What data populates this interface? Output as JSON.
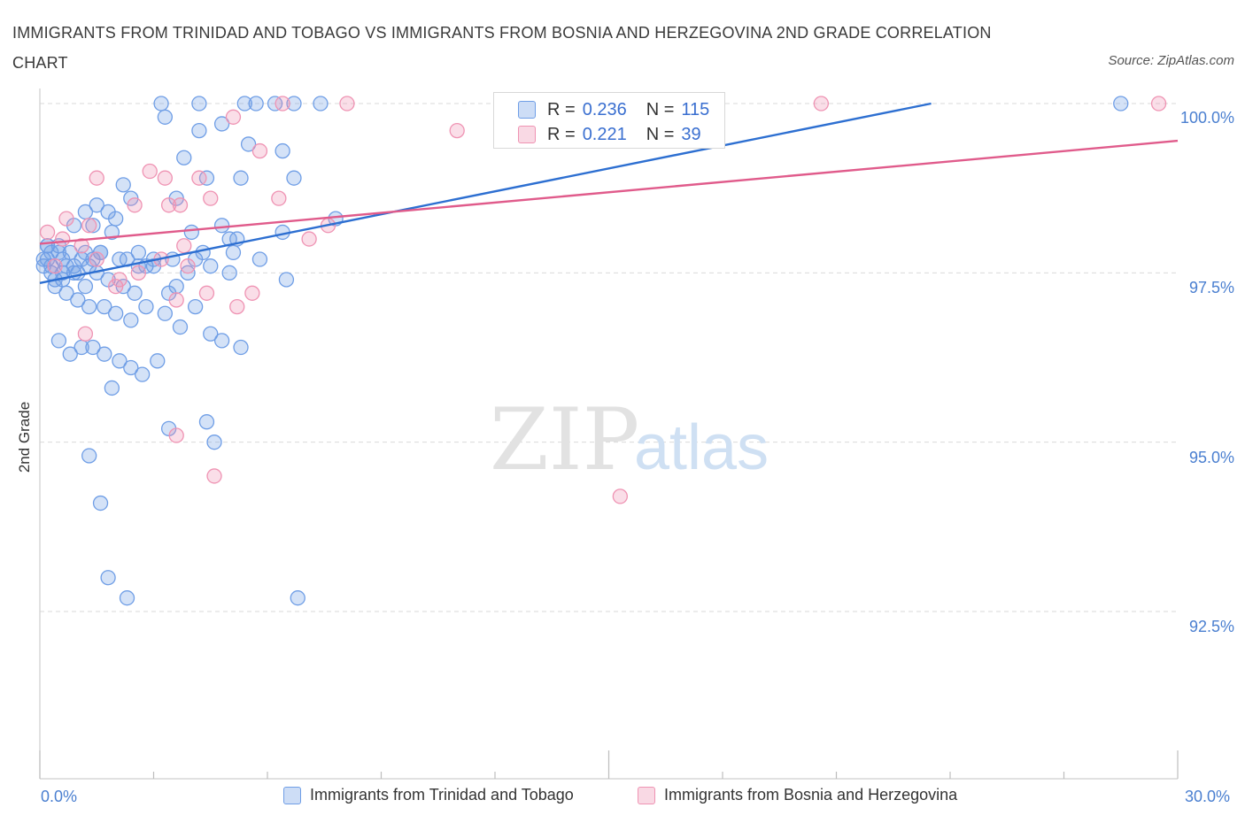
{
  "title": "IMMIGRANTS FROM TRINIDAD AND TOBAGO VS IMMIGRANTS FROM BOSNIA AND HERZEGOVINA 2ND GRADE CORRELATION CHART",
  "source": "Source: ZipAtlas.com",
  "watermark": {
    "zip": "ZIP",
    "atlas": "atlas"
  },
  "legend_top": [
    {
      "r_label": "R =",
      "r_value": "0.236",
      "n_label": "N =",
      "n_value": "115",
      "color": "#6f9ee6"
    },
    {
      "r_label": "R =",
      "r_value": "0.221",
      "n_label": "N =",
      "n_value": "39",
      "color": "#ef93b3"
    }
  ],
  "chart_data": {
    "type": "scatter",
    "title": "IMMIGRANTS FROM TRINIDAD AND TOBAGO VS IMMIGRANTS FROM BOSNIA AND HERZEGOVINA 2ND GRADE CORRELATION CHART",
    "xlabel": "",
    "ylabel": "2nd Grade",
    "xlim": [
      0,
      30
    ],
    "ylim": [
      90.25,
      100.2
    ],
    "x_tick_labels": [
      "0.0%",
      "30.0%"
    ],
    "y_ticks": [
      92.5,
      95.0,
      97.5,
      100.0
    ],
    "y_tick_labels": [
      "92.5%",
      "95.0%",
      "97.5%",
      "100.0%"
    ],
    "grid": true,
    "legend_position": "top-center",
    "series": [
      {
        "name": "Immigrants from Trinidad and Tobago",
        "color": "#6f9ee6",
        "line_color": "#2d6fd1",
        "trend": {
          "x": [
            0,
            23.5
          ],
          "y": [
            97.35,
            100.0
          ]
        },
        "points": [
          [
            3.2,
            100
          ],
          [
            4.2,
            100
          ],
          [
            5.7,
            100
          ],
          [
            5.4,
            100
          ],
          [
            6.2,
            100
          ],
          [
            6.7,
            100
          ],
          [
            7.4,
            100
          ],
          [
            28.5,
            100
          ],
          [
            3.3,
            99.8
          ],
          [
            4.8,
            99.7
          ],
          [
            3.8,
            99.2
          ],
          [
            4.2,
            99.6
          ],
          [
            5.5,
            99.4
          ],
          [
            6.4,
            99.3
          ],
          [
            5.3,
            98.9
          ],
          [
            6.7,
            98.9
          ],
          [
            3.6,
            98.6
          ],
          [
            4.4,
            98.9
          ],
          [
            2.2,
            98.8
          ],
          [
            7.8,
            98.3
          ],
          [
            1.2,
            98.4
          ],
          [
            1.5,
            98.5
          ],
          [
            1.8,
            98.4
          ],
          [
            2.0,
            98.3
          ],
          [
            2.4,
            98.6
          ],
          [
            0.9,
            98.2
          ],
          [
            1.4,
            98.2
          ],
          [
            1.9,
            98.1
          ],
          [
            4.0,
            98.1
          ],
          [
            4.8,
            98.2
          ],
          [
            5.2,
            98.0
          ],
          [
            5.0,
            98.0
          ],
          [
            0.2,
            97.9
          ],
          [
            0.5,
            97.9
          ],
          [
            0.8,
            97.8
          ],
          [
            1.1,
            97.7
          ],
          [
            1.3,
            97.6
          ],
          [
            1.6,
            97.8
          ],
          [
            2.1,
            97.7
          ],
          [
            2.6,
            97.6
          ],
          [
            3.0,
            97.6
          ],
          [
            3.5,
            97.7
          ],
          [
            4.3,
            97.8
          ],
          [
            4.1,
            97.7
          ],
          [
            4.5,
            97.6
          ],
          [
            5.1,
            97.8
          ],
          [
            5.8,
            97.7
          ],
          [
            6.5,
            97.4
          ],
          [
            0.1,
            97.6
          ],
          [
            0.3,
            97.5
          ],
          [
            0.6,
            97.4
          ],
          [
            0.9,
            97.6
          ],
          [
            1.2,
            97.3
          ],
          [
            1.5,
            97.5
          ],
          [
            1.8,
            97.4
          ],
          [
            2.2,
            97.3
          ],
          [
            2.5,
            97.2
          ],
          [
            2.8,
            97.0
          ],
          [
            3.4,
            97.2
          ],
          [
            4.1,
            97.0
          ],
          [
            0.4,
            97.3
          ],
          [
            0.7,
            97.2
          ],
          [
            1.0,
            97.1
          ],
          [
            1.3,
            97.0
          ],
          [
            1.7,
            97.0
          ],
          [
            2.0,
            96.9
          ],
          [
            2.4,
            96.8
          ],
          [
            3.3,
            96.9
          ],
          [
            3.7,
            96.7
          ],
          [
            4.5,
            96.6
          ],
          [
            4.8,
            96.5
          ],
          [
            5.3,
            96.4
          ],
          [
            0.5,
            96.5
          ],
          [
            0.8,
            96.3
          ],
          [
            1.1,
            96.4
          ],
          [
            1.4,
            96.4
          ],
          [
            1.7,
            96.3
          ],
          [
            2.1,
            96.2
          ],
          [
            2.4,
            96.1
          ],
          [
            2.7,
            96.0
          ],
          [
            3.1,
            96.2
          ],
          [
            1.9,
            95.8
          ],
          [
            3.4,
            95.2
          ],
          [
            4.4,
            95.3
          ],
          [
            4.6,
            95.0
          ],
          [
            1.3,
            94.8
          ],
          [
            1.6,
            94.1
          ],
          [
            1.8,
            93.0
          ],
          [
            2.3,
            92.7
          ],
          [
            6.8,
            92.7
          ],
          [
            0.3,
            97.8
          ],
          [
            0.6,
            97.7
          ],
          [
            0.9,
            97.5
          ],
          [
            1.6,
            97.8
          ],
          [
            2.8,
            97.6
          ],
          [
            3.6,
            97.3
          ],
          [
            0.2,
            97.7
          ],
          [
            0.4,
            97.4
          ],
          [
            0.7,
            97.6
          ],
          [
            1.2,
            97.8
          ],
          [
            2.3,
            97.7
          ],
          [
            3.0,
            97.7
          ],
          [
            5.0,
            97.5
          ],
          [
            0.3,
            97.6
          ],
          [
            0.5,
            97.8
          ],
          [
            1.0,
            97.5
          ],
          [
            1.4,
            97.7
          ],
          [
            2.6,
            97.8
          ],
          [
            3.9,
            97.5
          ],
          [
            6.4,
            98.1
          ],
          [
            0.1,
            97.7
          ],
          [
            0.2,
            97.9
          ],
          [
            0.6,
            97.5
          ]
        ]
      },
      {
        "name": "Immigrants from Bosnia and Herzegovina",
        "color": "#ef93b3",
        "line_color": "#e05b8b",
        "trend": {
          "x": [
            0,
            30
          ],
          "y": [
            97.93,
            99.45
          ]
        },
        "points": [
          [
            6.4,
            100
          ],
          [
            8.1,
            100
          ],
          [
            20.6,
            100
          ],
          [
            29.5,
            100
          ],
          [
            11.0,
            99.6
          ],
          [
            5.1,
            99.8
          ],
          [
            5.8,
            99.3
          ],
          [
            1.5,
            98.9
          ],
          [
            2.9,
            99.0
          ],
          [
            3.3,
            98.9
          ],
          [
            4.2,
            98.9
          ],
          [
            4.5,
            98.6
          ],
          [
            3.4,
            98.5
          ],
          [
            3.7,
            98.5
          ],
          [
            2.5,
            98.5
          ],
          [
            6.3,
            98.6
          ],
          [
            7.1,
            98.0
          ],
          [
            0.7,
            98.3
          ],
          [
            1.3,
            98.2
          ],
          [
            0.2,
            98.1
          ],
          [
            0.6,
            98.0
          ],
          [
            1.1,
            97.9
          ],
          [
            3.8,
            97.9
          ],
          [
            2.6,
            97.5
          ],
          [
            3.2,
            97.7
          ],
          [
            3.9,
            97.6
          ],
          [
            5.6,
            97.2
          ],
          [
            5.2,
            97.0
          ],
          [
            2.1,
            97.4
          ],
          [
            0.4,
            97.6
          ],
          [
            1.5,
            97.7
          ],
          [
            2.0,
            97.3
          ],
          [
            1.2,
            96.6
          ],
          [
            4.4,
            97.2
          ],
          [
            3.6,
            97.1
          ],
          [
            3.6,
            95.1
          ],
          [
            4.6,
            94.5
          ],
          [
            15.3,
            94.2
          ],
          [
            7.6,
            98.2
          ]
        ]
      }
    ]
  },
  "bottom_legend": [
    {
      "label": "Immigrants from Trinidad and Tobago",
      "color": "#6f9ee6"
    },
    {
      "label": "Immigrants from Bosnia and Herzegovina",
      "color": "#ef93b3"
    }
  ]
}
